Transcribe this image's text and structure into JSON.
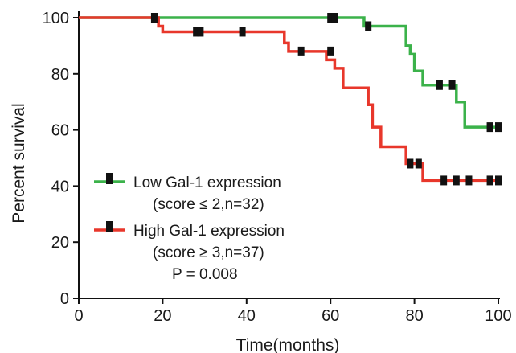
{
  "chart_data": {
    "type": "line",
    "step": true,
    "xlabel": "Time(months)",
    "ylabel": "Percent survival",
    "xlim": [
      0,
      100
    ],
    "ylim": [
      0,
      100
    ],
    "x_ticks": [
      "0",
      "20",
      "40",
      "60",
      "80",
      "100"
    ],
    "y_ticks": [
      "0",
      "20",
      "40",
      "60",
      "80",
      "100"
    ],
    "grid": false,
    "legend_position": "lower-left",
    "series": [
      {
        "name": "Low Gal-1 expression",
        "name_line2": "(score ≤ 2,n=32)",
        "color": "#3bb24a",
        "steps": [
          [
            0,
            100
          ],
          [
            60,
            100
          ],
          [
            68,
            97
          ],
          [
            78,
            90
          ],
          [
            79,
            87
          ],
          [
            80,
            81
          ],
          [
            82,
            76
          ],
          [
            90,
            70
          ],
          [
            92,
            61
          ],
          [
            100,
            61
          ]
        ],
        "censored": [
          [
            18,
            100
          ],
          [
            60,
            100
          ],
          [
            61,
            100
          ],
          [
            69,
            97
          ],
          [
            86,
            76
          ],
          [
            89,
            76
          ],
          [
            98,
            61
          ],
          [
            100,
            61
          ]
        ]
      },
      {
        "name": "High Gal-1 expression",
        "name_line2": "(score ≥ 3,n=37)",
        "color": "#e8372b",
        "steps": [
          [
            0,
            100
          ],
          [
            19,
            97
          ],
          [
            20,
            95
          ],
          [
            49,
            91
          ],
          [
            50,
            88
          ],
          [
            59,
            85
          ],
          [
            61,
            82
          ],
          [
            63,
            75
          ],
          [
            69,
            69
          ],
          [
            70,
            61
          ],
          [
            72,
            54
          ],
          [
            78,
            48
          ],
          [
            82,
            42
          ],
          [
            100,
            42
          ]
        ],
        "censored": [
          [
            18,
            100
          ],
          [
            28,
            95
          ],
          [
            29,
            95
          ],
          [
            39,
            95
          ],
          [
            53,
            88
          ],
          [
            60,
            88
          ],
          [
            79,
            48
          ],
          [
            81,
            48
          ],
          [
            87,
            42
          ],
          [
            90,
            42
          ],
          [
            93,
            42
          ],
          [
            98,
            42
          ],
          [
            100,
            42
          ]
        ]
      }
    ],
    "annotation": "P = 0.008"
  }
}
